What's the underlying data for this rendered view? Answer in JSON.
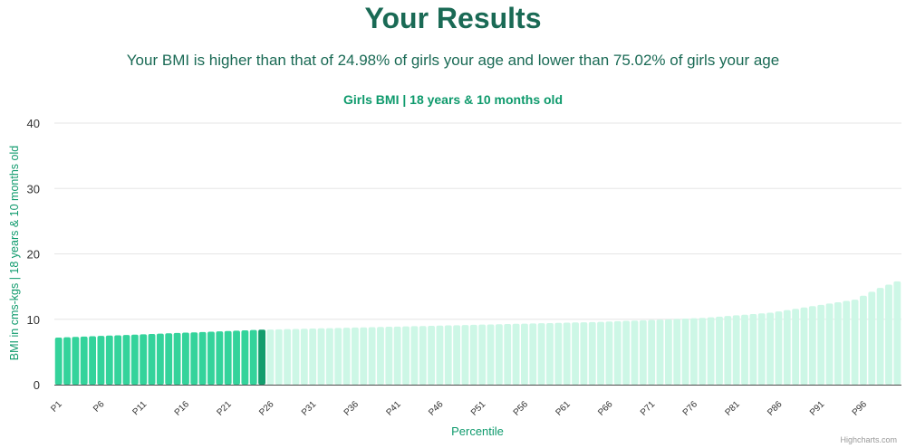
{
  "header": {
    "title": "Your Results",
    "subtitle": "Your BMI is higher than that of 24.98% of girls your age and lower than 75.02% of girls your age"
  },
  "colors": {
    "heading": "#1a6a55",
    "accent": "#0e9a6c",
    "bar_below": "#34d39b",
    "bar_current": "#139d6d",
    "bar_above": "#cdf7e6",
    "grid": "#e6e6e6",
    "axis_line": "#4a4a4a",
    "tick_text": "#333333"
  },
  "credits": "Highcharts.com",
  "chart_data": {
    "type": "bar",
    "title": "Girls BMI | 18 years & 10 months old",
    "xlabel": "Percentile",
    "ylabel": "BMI in cms-kgs | 18 years & 10 months old",
    "ylim": [
      0,
      40
    ],
    "yticks": [
      0,
      10,
      20,
      30,
      40
    ],
    "grid": true,
    "legend": "none",
    "current_index": 24,
    "categories": [
      "P1",
      "P2",
      "P3",
      "P4",
      "P5",
      "P6",
      "P7",
      "P8",
      "P9",
      "P10",
      "P11",
      "P12",
      "P13",
      "P14",
      "P15",
      "P16",
      "P17",
      "P18",
      "P19",
      "P20",
      "P21",
      "P22",
      "P23",
      "P24",
      "P25",
      "P26",
      "P27",
      "P28",
      "P29",
      "P30",
      "P31",
      "P32",
      "P33",
      "P34",
      "P35",
      "P36",
      "P37",
      "P38",
      "P39",
      "P40",
      "P41",
      "P42",
      "P43",
      "P44",
      "P45",
      "P46",
      "P47",
      "P48",
      "P49",
      "P50",
      "P51",
      "P52",
      "P53",
      "P54",
      "P55",
      "P56",
      "P57",
      "P58",
      "P59",
      "P60",
      "P61",
      "P62",
      "P63",
      "P64",
      "P65",
      "P66",
      "P67",
      "P68",
      "P69",
      "P70",
      "P71",
      "P72",
      "P73",
      "P74",
      "P75",
      "P76",
      "P77",
      "P78",
      "P79",
      "P80",
      "P81",
      "P82",
      "P83",
      "P84",
      "P85",
      "P86",
      "P87",
      "P88",
      "P89",
      "P90",
      "P91",
      "P92",
      "P93",
      "P94",
      "P95",
      "P96",
      "P97",
      "P98",
      "P99",
      "P100"
    ],
    "tick_labels": [
      "P1",
      "P6",
      "P11",
      "P16",
      "P21",
      "P26",
      "P31",
      "P36",
      "P41",
      "P46",
      "P51",
      "P56",
      "P61",
      "P66",
      "P71",
      "P76",
      "P81",
      "P86",
      "P91",
      "P96"
    ],
    "values": [
      7.2,
      7.25,
      7.3,
      7.35,
      7.4,
      7.45,
      7.5,
      7.55,
      7.6,
      7.65,
      7.7,
      7.75,
      7.8,
      7.85,
      7.9,
      7.95,
      8.0,
      8.05,
      8.1,
      8.15,
      8.2,
      8.25,
      8.3,
      8.35,
      8.4,
      8.43,
      8.46,
      8.49,
      8.52,
      8.55,
      8.58,
      8.61,
      8.64,
      8.67,
      8.7,
      8.73,
      8.76,
      8.79,
      8.82,
      8.85,
      8.88,
      8.91,
      8.94,
      8.97,
      9.0,
      9.03,
      9.06,
      9.09,
      9.12,
      9.15,
      9.18,
      9.21,
      9.24,
      9.27,
      9.3,
      9.33,
      9.36,
      9.39,
      9.42,
      9.45,
      9.48,
      9.51,
      9.54,
      9.57,
      9.6,
      9.65,
      9.7,
      9.75,
      9.8,
      9.85,
      9.9,
      9.95,
      10.0,
      10.05,
      10.1,
      10.15,
      10.2,
      10.3,
      10.4,
      10.5,
      10.6,
      10.7,
      10.8,
      10.9,
      11.0,
      11.2,
      11.4,
      11.6,
      11.8,
      12.0,
      12.2,
      12.4,
      12.6,
      12.8,
      13.0,
      13.6,
      14.2,
      14.8,
      15.3,
      15.8
    ]
  }
}
